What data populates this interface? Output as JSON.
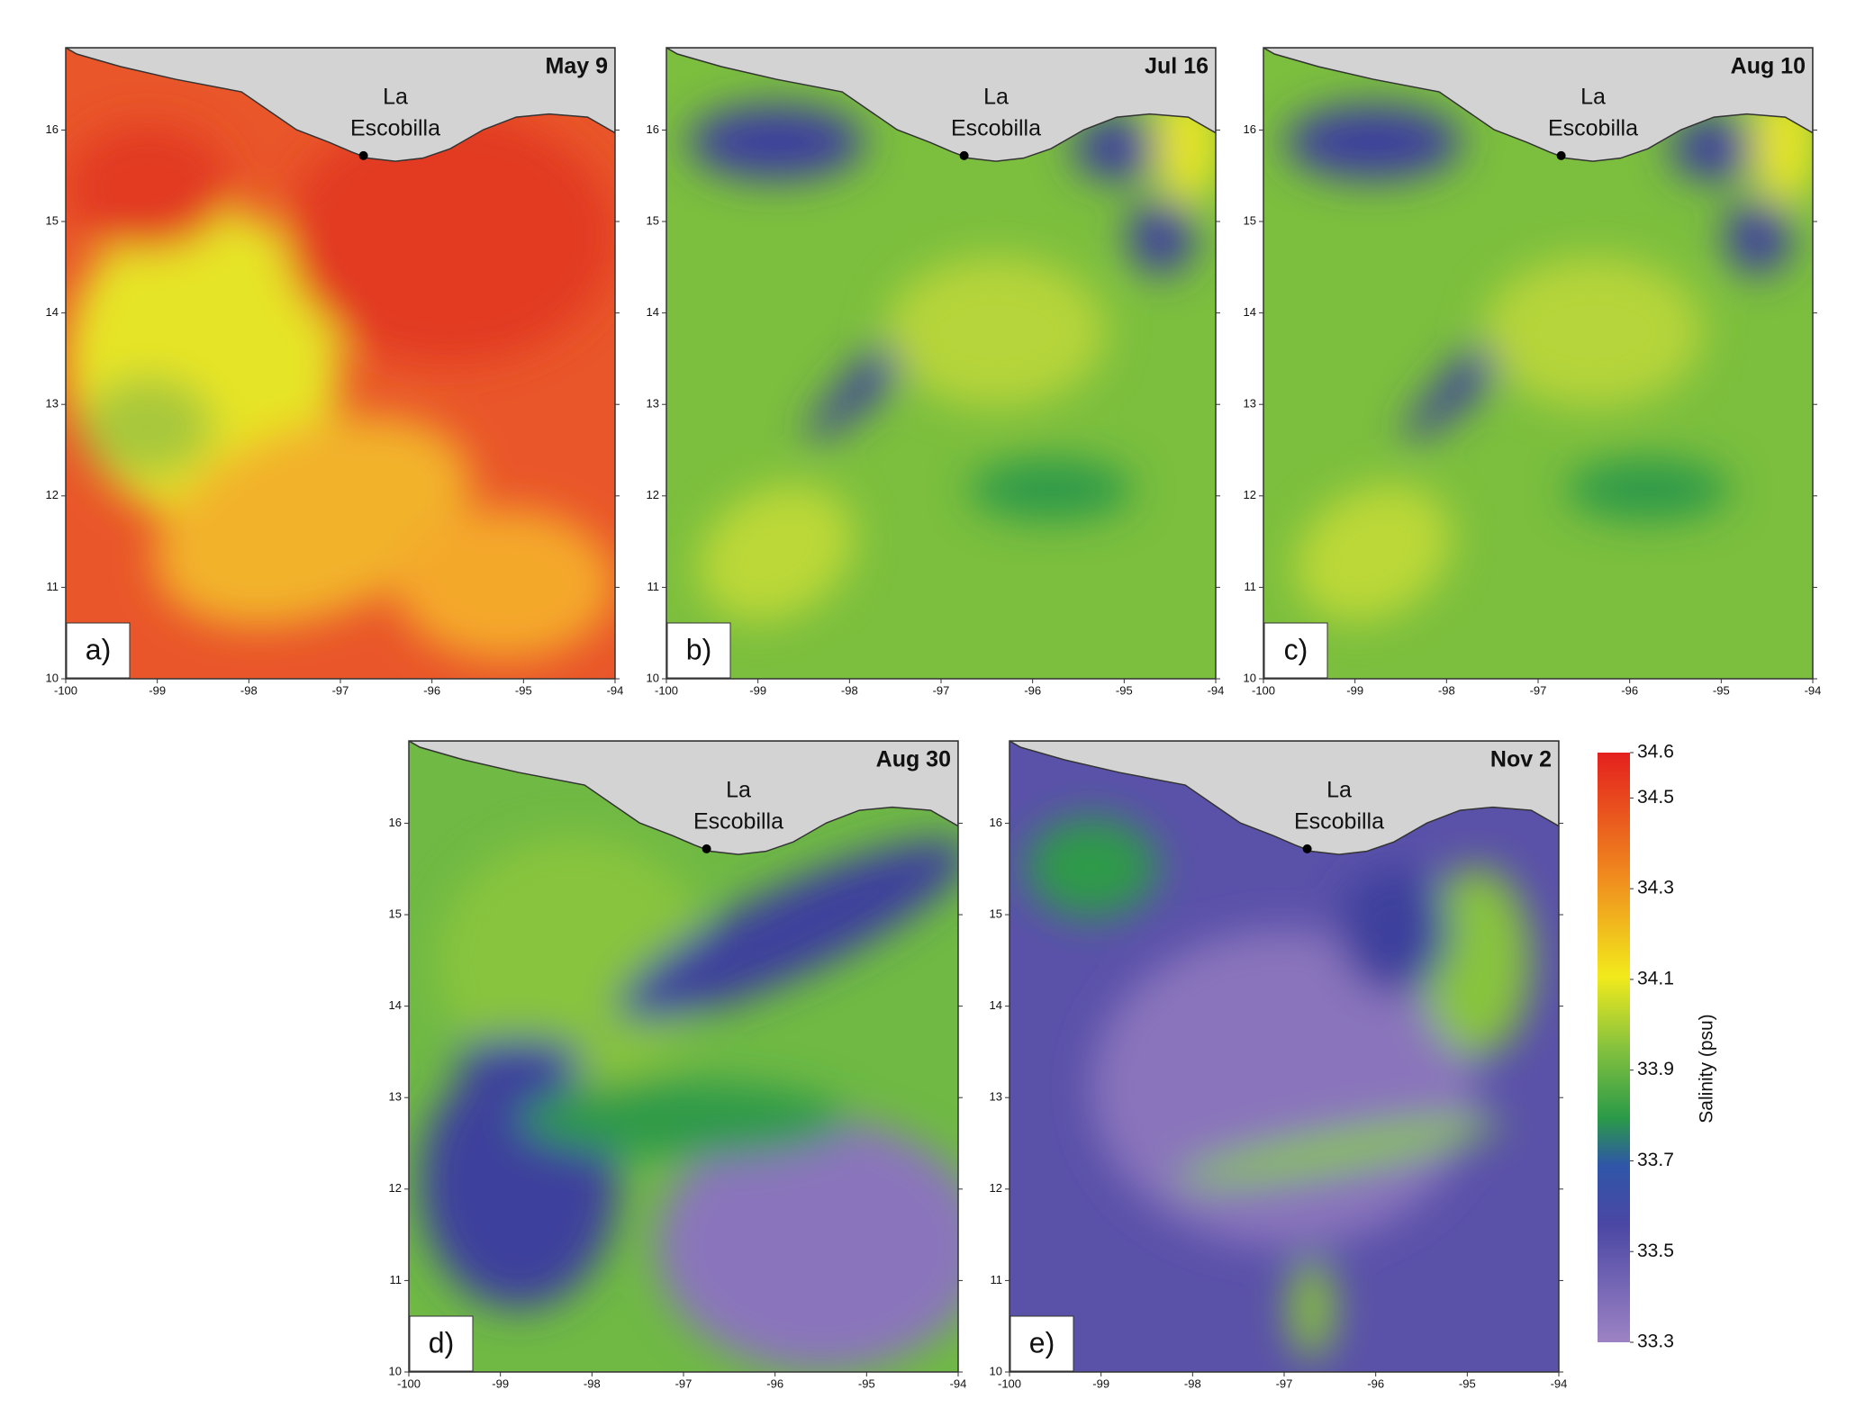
{
  "panels": [
    {
      "label": "a)",
      "date": "May 9"
    },
    {
      "label": "b)",
      "date": "Jul 16"
    },
    {
      "label": "c)",
      "date": "Aug 10"
    },
    {
      "label": "d)",
      "date": "Aug 30"
    },
    {
      "label": "e)",
      "date": "Nov 2"
    }
  ],
  "site_label": [
    "La",
    "Escobilla"
  ],
  "xlim": [
    -100,
    -94
  ],
  "ylim": [
    10,
    16.9
  ],
  "xticks": [
    -100,
    -99,
    -98,
    -97,
    -96,
    -95,
    -94
  ],
  "yticks": [
    10,
    11,
    12,
    13,
    14,
    15,
    16
  ],
  "colorbar": {
    "label": "Salinity (psu)",
    "lim": [
      33.3,
      34.6
    ],
    "ticks": [
      33.3,
      33.5,
      33.7,
      33.9,
      34.1,
      34.3,
      34.5,
      34.6
    ]
  }
}
